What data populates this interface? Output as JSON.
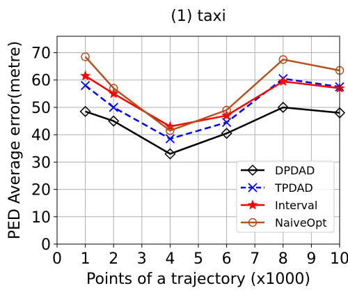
{
  "chart_data": {
    "type": "line",
    "title": "(1) taxi",
    "xlabel": "Points of a trajectory (x1000)",
    "ylabel": "PED Average error(metre)",
    "xlim": [
      0,
      10
    ],
    "ylim": [
      0,
      76
    ],
    "xticks": [
      0,
      1,
      2,
      3,
      4,
      5,
      6,
      7,
      8,
      9,
      10
    ],
    "yticks": [
      0,
      10,
      20,
      30,
      40,
      50,
      60,
      70
    ],
    "grid": true,
    "legend_position": "lower-right",
    "x": [
      1,
      2,
      4,
      6,
      8,
      10
    ],
    "series": [
      {
        "name": "DPDAD",
        "color": "#000000",
        "marker": "diamond",
        "dash": "solid",
        "values": [
          48.5,
          45,
          33,
          40.5,
          50,
          48
        ]
      },
      {
        "name": "TPDAD",
        "color": "#0000ff",
        "marker": "x",
        "dash": "dashed",
        "values": [
          58,
          50,
          38.5,
          44.5,
          60.5,
          57.5
        ]
      },
      {
        "name": "Interval",
        "color": "#ff0000",
        "marker": "star",
        "dash": "solid",
        "values": [
          61.5,
          55,
          43,
          47,
          59.5,
          57
        ]
      },
      {
        "name": "NaiveOpt",
        "color": "#b5501f",
        "marker": "circle",
        "dash": "solid",
        "values": [
          68.5,
          57,
          41.5,
          49,
          67.5,
          63.5
        ]
      }
    ]
  }
}
